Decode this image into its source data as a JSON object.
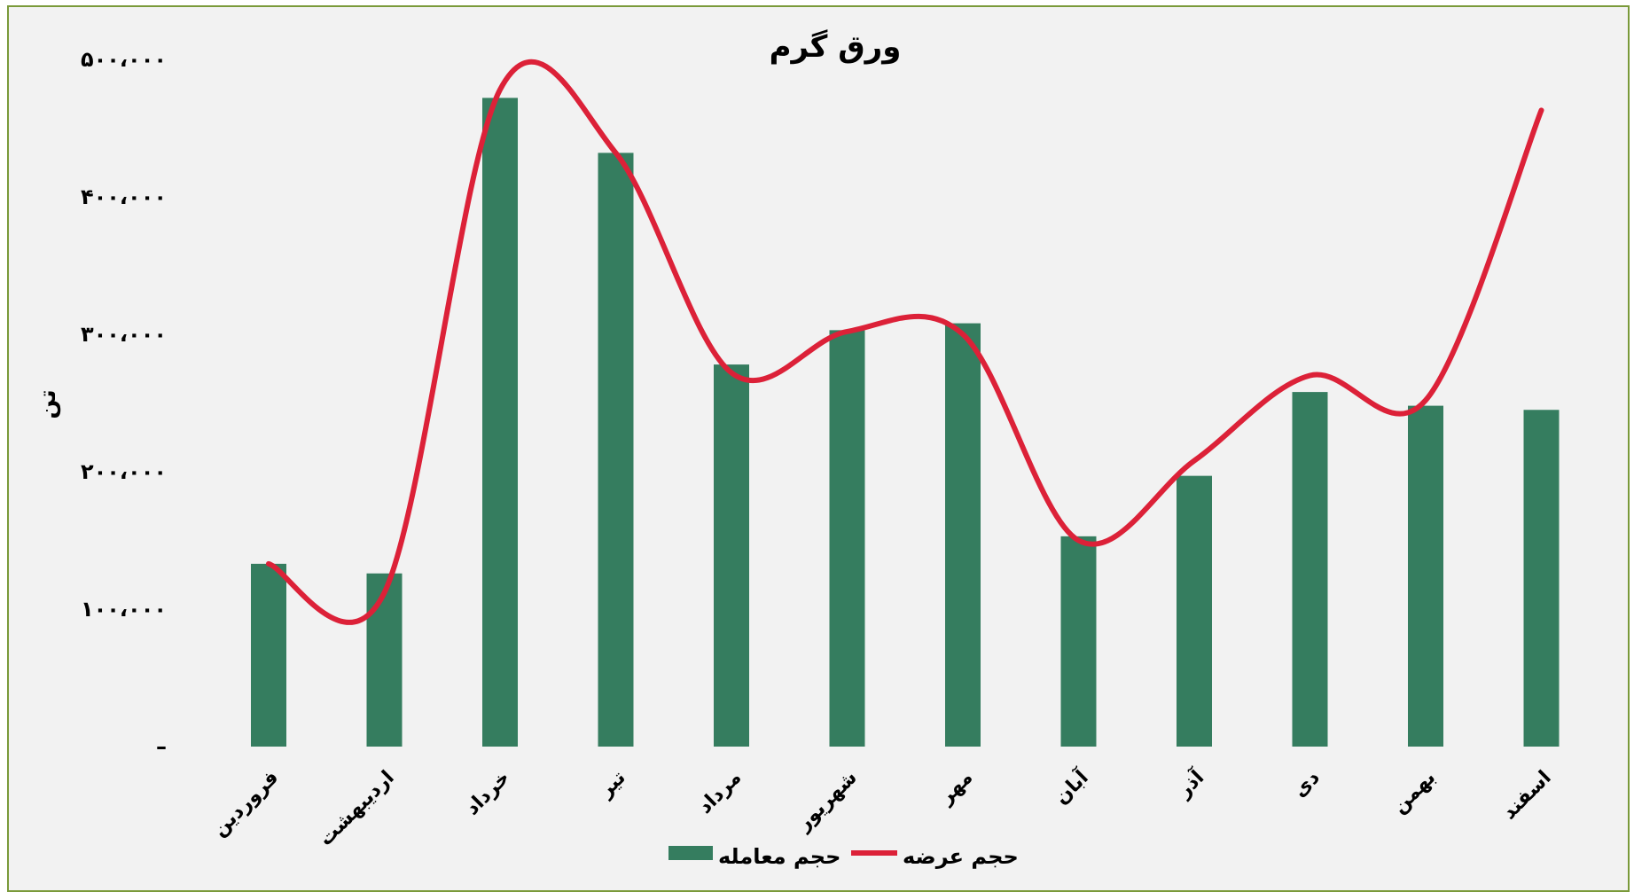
{
  "chart_data": {
    "type": "bar",
    "title": "ورق گرم",
    "ylabel": "تن",
    "xlabel": "",
    "ylim": [
      0,
      500000
    ],
    "ytick_labels": [
      "–",
      "۱۰۰،۰۰۰",
      "۲۰۰،۰۰۰",
      "۳۰۰،۰۰۰",
      "۴۰۰،۰۰۰",
      "۵۰۰،۰۰۰"
    ],
    "categories": [
      "فروردین",
      "اردیبهشت",
      "خرداد",
      "تیر",
      "مرداد",
      "شهریور",
      "مهر",
      "آبان",
      "آذر",
      "دی",
      "بهمن",
      "اسفند"
    ],
    "grid": false,
    "legend_position": "bottom",
    "series": [
      {
        "name": "حجم معامله",
        "type": "bar",
        "color": "#357d5f",
        "values": [
          133000,
          126000,
          472000,
          432000,
          278000,
          303000,
          308000,
          153000,
          197000,
          258000,
          248000,
          245000
        ]
      },
      {
        "name": "حجم عرضه",
        "type": "line",
        "smooth": true,
        "color": "#dc2138",
        "values": [
          133000,
          112000,
          478000,
          432000,
          272000,
          302000,
          300000,
          150000,
          208000,
          270000,
          252000,
          463000
        ]
      }
    ]
  }
}
